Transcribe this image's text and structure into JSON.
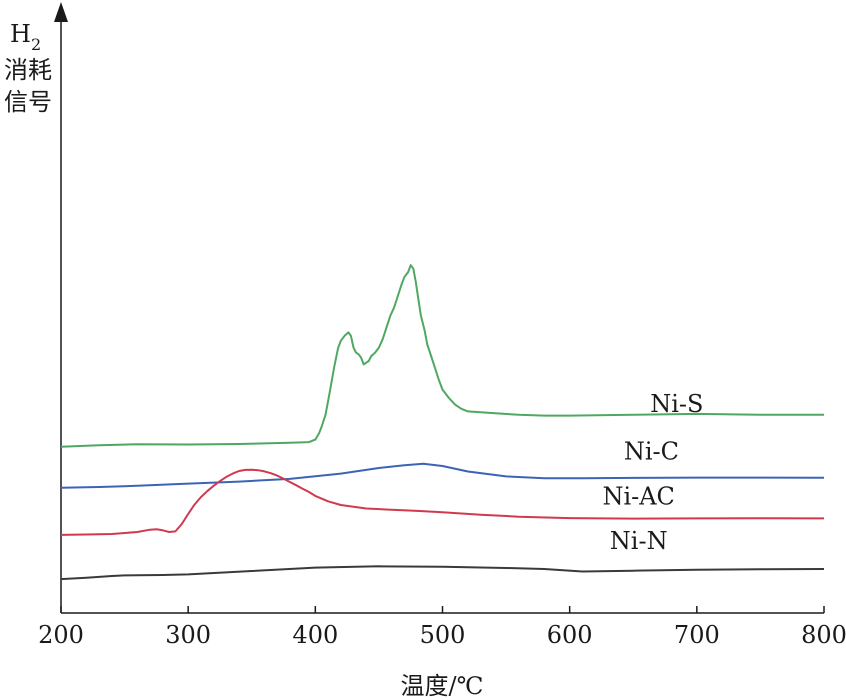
{
  "chart_data": {
    "type": "line",
    "xlabel": "温度/℃",
    "ylabel": {
      "prefix": "H",
      "subscript": "2",
      "lines": [
        "消耗",
        "信号"
      ]
    },
    "xlim": [
      200,
      800
    ],
    "xticks": [
      200,
      300,
      400,
      500,
      600,
      700,
      800
    ],
    "grid": false,
    "series": [
      {
        "name": "Ni-S",
        "color": "#4fa862",
        "label_at": [
          700,
          0.945
        ],
        "x": [
          200,
          210,
          230,
          260,
          300,
          340,
          380,
          395,
          400,
          403,
          405,
          408,
          411,
          415,
          418,
          420,
          423,
          426,
          428,
          430,
          432,
          434,
          436,
          438,
          440,
          442,
          444,
          447,
          450,
          453,
          456,
          459,
          462,
          465,
          468,
          470,
          473,
          475,
          477,
          479,
          481,
          483,
          486,
          488,
          491,
          494,
          497,
          500,
          505,
          510,
          515,
          520,
          540,
          560,
          580,
          600,
          650,
          700,
          750,
          800
        ],
        "y": [
          0.74,
          0.743,
          0.748,
          0.755,
          0.753,
          0.756,
          0.763,
          0.767,
          0.782,
          0.82,
          0.86,
          0.93,
          1.05,
          1.22,
          1.33,
          1.37,
          1.4,
          1.42,
          1.4,
          1.33,
          1.3,
          1.29,
          1.27,
          1.23,
          1.24,
          1.25,
          1.28,
          1.3,
          1.33,
          1.38,
          1.45,
          1.52,
          1.57,
          1.64,
          1.71,
          1.75,
          1.78,
          1.82,
          1.8,
          1.72,
          1.62,
          1.52,
          1.43,
          1.35,
          1.28,
          1.21,
          1.14,
          1.08,
          1.03,
          0.99,
          0.965,
          0.95,
          0.94,
          0.93,
          0.925,
          0.925,
          0.93,
          0.935,
          0.93,
          0.93
        ]
      },
      {
        "name": "Ni-C",
        "color": "#3c64b4",
        "label_at": [
          680,
          0.7
        ],
        "x": [
          200,
          230,
          260,
          300,
          340,
          380,
          420,
          450,
          470,
          485,
          500,
          520,
          550,
          580,
          610,
          650,
          700,
          750,
          800
        ],
        "y": [
          0.495,
          0.5,
          0.507,
          0.52,
          0.532,
          0.548,
          0.58,
          0.613,
          0.63,
          0.638,
          0.625,
          0.592,
          0.563,
          0.552,
          0.552,
          0.554,
          0.556,
          0.556,
          0.555
        ],
        "label_y": 0.665
      },
      {
        "name": "Ni-AC",
        "color": "#d03a4e",
        "label_at": [
          670,
          0.395
        ],
        "x": [
          200,
          220,
          240,
          260,
          270,
          275,
          280,
          285,
          290,
          295,
          300,
          305,
          310,
          315,
          320,
          325,
          330,
          335,
          340,
          345,
          350,
          355,
          360,
          365,
          370,
          375,
          380,
          385,
          390,
          395,
          400,
          410,
          420,
          440,
          460,
          480,
          500,
          530,
          560,
          600,
          650,
          700,
          750,
          800
        ],
        "y": [
          0.215,
          0.217,
          0.22,
          0.232,
          0.246,
          0.248,
          0.242,
          0.232,
          0.236,
          0.28,
          0.34,
          0.395,
          0.44,
          0.475,
          0.507,
          0.535,
          0.56,
          0.58,
          0.595,
          0.602,
          0.603,
          0.6,
          0.593,
          0.582,
          0.568,
          0.55,
          0.53,
          0.51,
          0.49,
          0.47,
          0.447,
          0.415,
          0.393,
          0.372,
          0.364,
          0.358,
          0.35,
          0.335,
          0.323,
          0.315,
          0.312,
          0.313,
          0.314,
          0.313
        ]
      },
      {
        "name": "Ni-N",
        "color": "#3a3a3a",
        "label_at": [
          670,
          0.132
        ],
        "x": [
          200,
          220,
          240,
          250,
          260,
          280,
          300,
          350,
          400,
          450,
          500,
          550,
          580,
          610,
          650,
          700,
          750,
          800
        ],
        "y": [
          -0.048,
          -0.04,
          -0.03,
          -0.026,
          -0.025,
          -0.024,
          -0.02,
          0.0,
          0.02,
          0.028,
          0.025,
          0.018,
          0.012,
          -0.003,
          0.002,
          0.008,
          0.01,
          0.012
        ]
      }
    ]
  }
}
